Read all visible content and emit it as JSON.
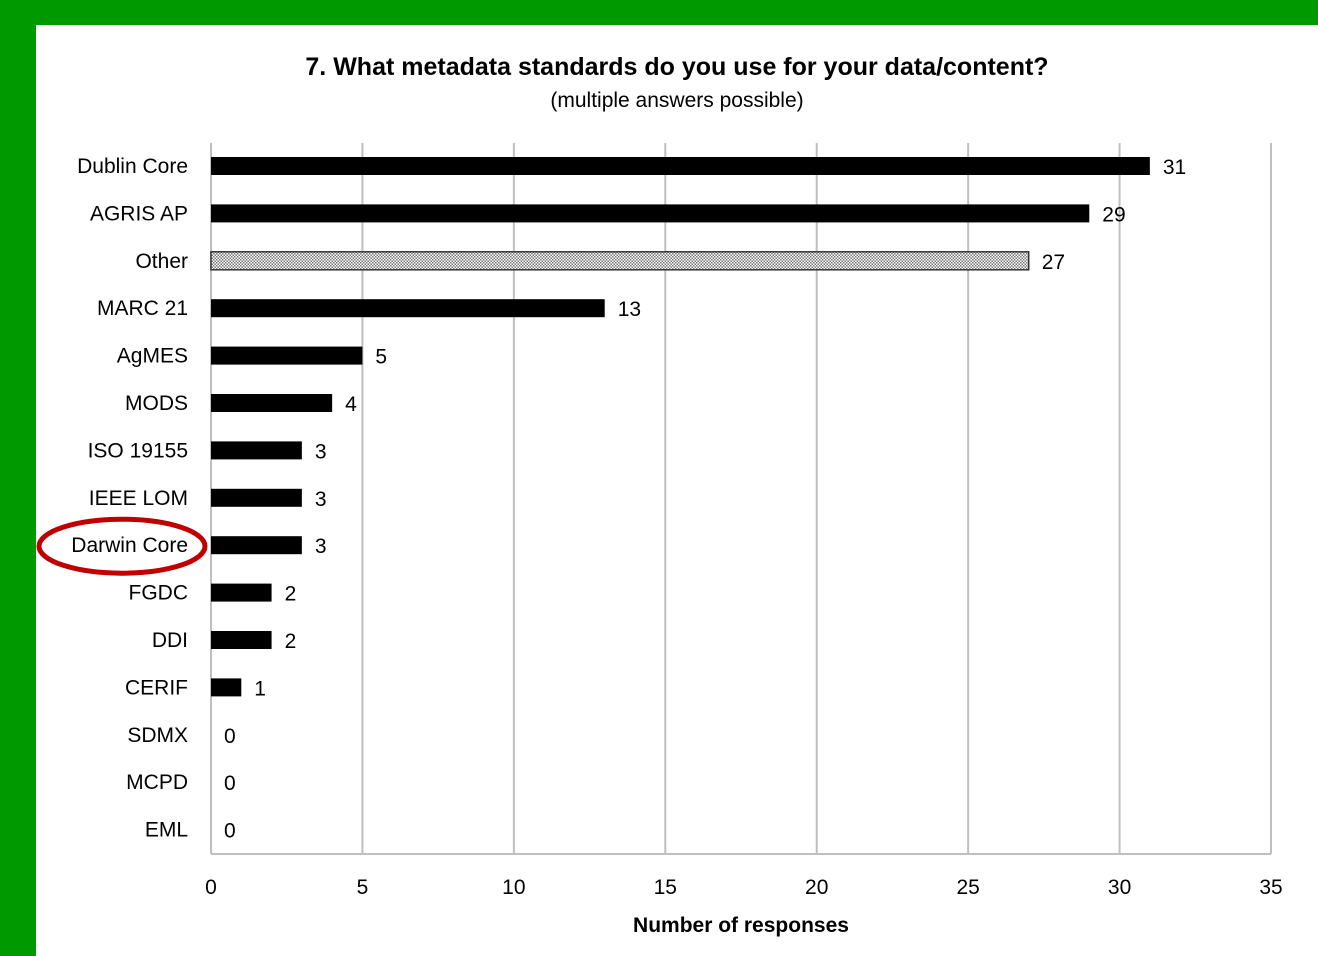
{
  "colors": {
    "frame": "#009900",
    "bar": "#000000",
    "highlight_bar_fill": "#bdbdbd",
    "gridline": "#bfbfbf",
    "annotation_circle": "#c00000"
  },
  "chart_data": {
    "type": "bar",
    "orientation": "horizontal",
    "title": "7. What metadata standards do you use for your data/content?",
    "subtitle": "(multiple answers possible)",
    "xlabel": "Number of responses",
    "ylabel": "",
    "xlim": [
      0,
      35
    ],
    "xticks": [
      0,
      5,
      10,
      15,
      20,
      25,
      30,
      35
    ],
    "grid": "vertical",
    "categories": [
      "Dublin Core",
      "AGRIS AP",
      "Other",
      "MARC 21",
      "AgMES",
      "MODS",
      "ISO 19155",
      "IEEE LOM",
      "Darwin Core",
      "FGDC",
      "DDI",
      "CERIF",
      "SDMX",
      "MCPD",
      "EML"
    ],
    "values": [
      31,
      29,
      27,
      13,
      5,
      4,
      3,
      3,
      3,
      2,
      2,
      1,
      0,
      0,
      0
    ],
    "patterned_category": "Other",
    "circled_category": "Darwin Core"
  }
}
